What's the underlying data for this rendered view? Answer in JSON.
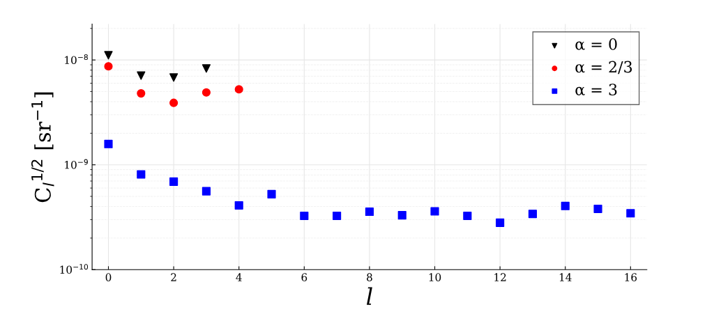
{
  "chart_data": {
    "type": "scatter",
    "xlabel": "l",
    "ylabel": "C$_{l}$$^{1/2}$ [sr$^{−1}$]",
    "log": "y",
    "grid": true,
    "legend": "top right",
    "xlim": [
      -0.5,
      16.5
    ],
    "xticks": [
      0,
      2,
      4,
      6,
      8,
      10,
      12,
      14,
      16
    ],
    "ylim": [
      1e-10,
      2.2e-08
    ],
    "yticks": [
      {
        "value": 1e-10,
        "label": "10$^{−10}$"
      },
      {
        "value": 1e-09,
        "label": "10$^{−9}$"
      },
      {
        "value": 1e-08,
        "label": "10$^{−8}$"
      }
    ],
    "series": [
      {
        "name": "α = 0",
        "color": "#000000",
        "marker": "triangle",
        "x": [
          0,
          1,
          2,
          3
        ],
        "values": [
          1.11e-08,
          7.1e-09,
          6.8e-09,
          8.3e-09
        ]
      },
      {
        "name": "α = 2/3",
        "color": "#ff0000",
        "marker": "circle",
        "x": [
          0,
          1,
          2,
          3,
          4
        ],
        "values": [
          8.7e-09,
          4.8e-09,
          3.9e-09,
          4.9e-09,
          5.25e-09
        ]
      },
      {
        "name": "α = 3",
        "color": "#0000ff",
        "marker": "square",
        "x": [
          0,
          1,
          2,
          3,
          4,
          5,
          6,
          7,
          8,
          9,
          10,
          11,
          12,
          13,
          14,
          15,
          16
        ],
        "values": [
          1.58e-09,
          8.1e-10,
          6.9e-10,
          5.6e-10,
          4.1e-10,
          5.25e-10,
          3.26e-10,
          3.26e-10,
          3.57e-10,
          3.3e-10,
          3.6e-10,
          3.26e-10,
          2.8e-10,
          3.4e-10,
          4.05e-10,
          3.8e-10,
          3.45e-10
        ]
      }
    ]
  }
}
